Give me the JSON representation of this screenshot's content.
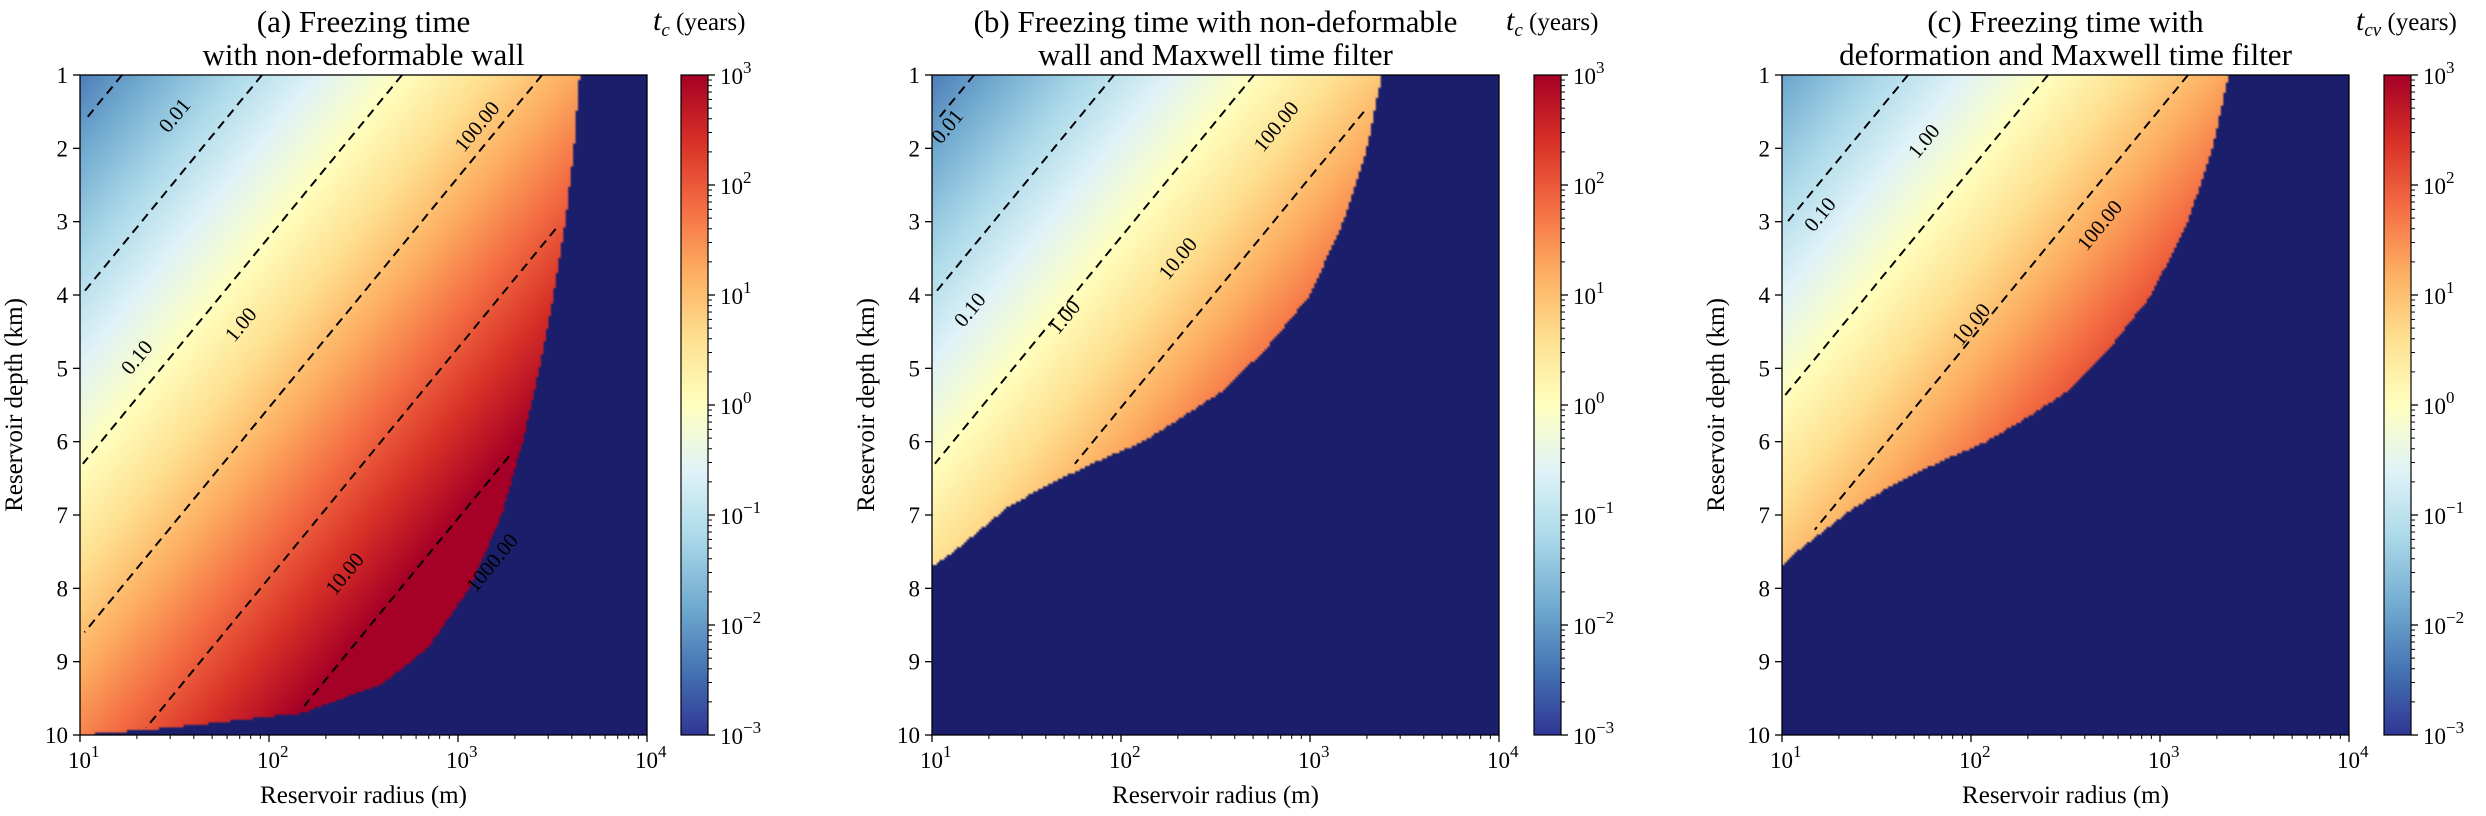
{
  "colors": {
    "invalid_region": "#1b1f6b",
    "contour_line": "#000000",
    "colormap_RdYlBu_r": [
      "#313695",
      "#4575b4",
      "#74add1",
      "#abd9e9",
      "#e0f3f8",
      "#ffffbf",
      "#fee090",
      "#fdae61",
      "#f46d43",
      "#d73027",
      "#a50026"
    ]
  },
  "chart_data": [
    {
      "type": "heatmap",
      "panel": "a",
      "title": [
        "(a) Freezing time",
        "with non-deformable wall"
      ],
      "xlabel": "Reservoir radius (m)",
      "ylabel": "Reservoir depth (km)",
      "x_scale": "log",
      "xlim": [
        10,
        10000
      ],
      "ylim": [
        10,
        1
      ],
      "x_ticks": [
        {
          "base": "10",
          "exp": "1"
        },
        {
          "base": "10",
          "exp": "2"
        },
        {
          "base": "10",
          "exp": "3"
        },
        {
          "base": "10",
          "exp": "4"
        }
      ],
      "y_ticks": [
        "1",
        "2",
        "3",
        "4",
        "5",
        "6",
        "7",
        "8",
        "9",
        "10"
      ],
      "colorbar": {
        "label_symbol": "t",
        "label_subscript": "c",
        "label_unit": "(years)",
        "scale": "log",
        "range": [
          0.001,
          1000
        ],
        "ticks": [
          {
            "base": "10",
            "exp": "3"
          },
          {
            "base": "10",
            "exp": "2"
          },
          {
            "base": "10",
            "exp": "1"
          },
          {
            "base": "10",
            "exp": "0"
          },
          {
            "base": "10",
            "exp": "−1"
          },
          {
            "base": "10",
            "exp": "−2"
          },
          {
            "base": "10",
            "exp": "−3"
          }
        ]
      },
      "field_model": {
        "log10_t_at_r10_depth1": -2.3,
        "slope_per_log10_r": 1.35,
        "slope_per_km": 0.43
      },
      "validity_boundary": [
        [
          1,
          4400
        ],
        [
          2,
          4100
        ],
        [
          3,
          3700
        ],
        [
          4,
          3200
        ],
        [
          5,
          2700
        ],
        [
          6,
          2200
        ],
        [
          7,
          1700
        ],
        [
          8,
          1150
        ],
        [
          8.8,
          700
        ],
        [
          9.3,
          400
        ],
        [
          9.7,
          150
        ],
        [
          9.9,
          30
        ],
        [
          10,
          10
        ]
      ],
      "contours": [
        {
          "label": "0.01",
          "label_at": [
            1.5,
            1.55
          ]
        },
        {
          "label": "0.10",
          "label_at": [
            1.3,
            4.85
          ]
        },
        {
          "label": "1.00",
          "label_at": [
            1.85,
            4.4
          ]
        },
        {
          "label": "10.00",
          "label_at": [
            2.4,
            7.8
          ]
        },
        {
          "label": "100.00",
          "label_at": [
            3.1,
            1.7
          ]
        },
        {
          "label": "1000.00",
          "label_at": [
            3.18,
            7.65
          ]
        }
      ]
    },
    {
      "type": "heatmap",
      "panel": "b",
      "title": [
        "(b) Freezing time with non-deformable",
        "wall and Maxwell time filter"
      ],
      "xlabel": "Reservoir radius (m)",
      "ylabel": "Reservoir depth (km)",
      "x_scale": "log",
      "xlim": [
        10,
        10000
      ],
      "ylim": [
        10,
        1
      ],
      "x_ticks": [
        {
          "base": "10",
          "exp": "1"
        },
        {
          "base": "10",
          "exp": "2"
        },
        {
          "base": "10",
          "exp": "3"
        },
        {
          "base": "10",
          "exp": "4"
        }
      ],
      "y_ticks": [
        "1",
        "2",
        "3",
        "4",
        "5",
        "6",
        "7",
        "8",
        "9",
        "10"
      ],
      "colorbar": {
        "label_symbol": "t",
        "label_subscript": "c",
        "label_unit": "(years)",
        "scale": "log",
        "range": [
          0.001,
          1000
        ],
        "ticks": [
          {
            "base": "10",
            "exp": "3"
          },
          {
            "base": "10",
            "exp": "2"
          },
          {
            "base": "10",
            "exp": "1"
          },
          {
            "base": "10",
            "exp": "0"
          },
          {
            "base": "10",
            "exp": "−1"
          },
          {
            "base": "10",
            "exp": "−2"
          },
          {
            "base": "10",
            "exp": "−3"
          }
        ]
      },
      "field_model": {
        "log10_t_at_r10_depth1": -2.3,
        "slope_per_log10_r": 1.35,
        "slope_per_km": 0.43
      },
      "validity_boundary": [
        [
          1,
          2400
        ],
        [
          2,
          2000
        ],
        [
          3,
          1500
        ],
        [
          4,
          1000
        ],
        [
          4.7,
          600
        ],
        [
          5.3,
          350
        ],
        [
          5.7,
          200
        ],
        [
          6.0,
          130
        ],
        [
          6.3,
          70
        ],
        [
          6.6,
          40
        ],
        [
          6.9,
          25
        ],
        [
          7.2,
          18
        ],
        [
          7.5,
          13
        ],
        [
          7.7,
          10
        ]
      ],
      "contours": [
        {
          "label": "0.01",
          "label_at": [
            1.08,
            1.7
          ]
        },
        {
          "label": "0.10",
          "label_at": [
            1.2,
            4.2
          ]
        },
        {
          "label": "1.00",
          "label_at": [
            1.7,
            4.3
          ]
        },
        {
          "label": "10.00",
          "label_at": [
            2.3,
            3.5
          ]
        },
        {
          "label": "100.00",
          "label_at": [
            2.82,
            1.7
          ]
        }
      ]
    },
    {
      "type": "heatmap",
      "panel": "c",
      "title": [
        "(c) Freezing time with",
        "deformation and Maxwell time filter"
      ],
      "xlabel": "Reservoir radius (m)",
      "ylabel": "Reservoir depth (km)",
      "x_scale": "log",
      "xlim": [
        10,
        10000
      ],
      "ylim": [
        10,
        1
      ],
      "x_ticks": [
        {
          "base": "10",
          "exp": "1"
        },
        {
          "base": "10",
          "exp": "2"
        },
        {
          "base": "10",
          "exp": "3"
        },
        {
          "base": "10",
          "exp": "4"
        }
      ],
      "y_ticks": [
        "1",
        "2",
        "3",
        "4",
        "5",
        "6",
        "7",
        "8",
        "9",
        "10"
      ],
      "colorbar": {
        "label_symbol": "t",
        "label_subscript": "cv",
        "label_unit": "(years)",
        "scale": "log",
        "range": [
          0.001,
          1000
        ],
        "ticks": [
          {
            "base": "10",
            "exp": "3"
          },
          {
            "base": "10",
            "exp": "2"
          },
          {
            "base": "10",
            "exp": "1"
          },
          {
            "base": "10",
            "exp": "0"
          },
          {
            "base": "10",
            "exp": "−1"
          },
          {
            "base": "10",
            "exp": "−2"
          },
          {
            "base": "10",
            "exp": "−3"
          }
        ]
      },
      "field_model": {
        "log10_t_at_r10_depth1": -1.9,
        "slope_per_log10_r": 1.35,
        "slope_per_km": 0.43
      },
      "validity_boundary": [
        [
          1,
          2300
        ],
        [
          2,
          1900
        ],
        [
          3,
          1400
        ],
        [
          4,
          900
        ],
        [
          4.7,
          550
        ],
        [
          5.3,
          330
        ],
        [
          5.7,
          190
        ],
        [
          6.0,
          120
        ],
        [
          6.3,
          65
        ],
        [
          6.6,
          38
        ],
        [
          6.9,
          24
        ],
        [
          7.2,
          17
        ],
        [
          7.5,
          12
        ],
        [
          7.7,
          10
        ]
      ],
      "contours": [
        {
          "label": "0.10",
          "label_at": [
            1.2,
            2.9
          ]
        },
        {
          "label": "1.00",
          "label_at": [
            1.75,
            1.9
          ]
        },
        {
          "label": "10.00",
          "label_at": [
            2.0,
            4.4
          ]
        },
        {
          "label": "100.00",
          "label_at": [
            2.68,
            3.05
          ]
        }
      ]
    }
  ]
}
